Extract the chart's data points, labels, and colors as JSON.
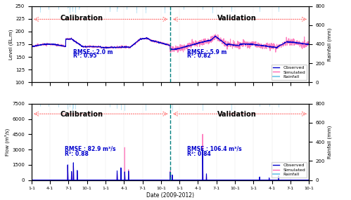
{
  "top_panel": {
    "ylabel": "Level (EL.m)",
    "ylabel2": "Rainfall (mm)",
    "ylim": [
      100,
      250
    ],
    "ylim2": [
      0,
      800
    ],
    "yticks": [
      100,
      125,
      150,
      175,
      200,
      225,
      250
    ],
    "yticks2": [
      0,
      200,
      400,
      600,
      800
    ],
    "calib_rmse": "RMSE : 2.0 m",
    "calib_r2": "R²: 0.95",
    "valid_rmse": "RMSE : 5.9 m",
    "valid_r2": "R²: 0.82"
  },
  "bottom_panel": {
    "ylabel": "Flow (m³/s)",
    "ylabel2": "Rainfall (mm)",
    "ylim": [
      0,
      7500
    ],
    "ylim2": [
      0,
      800
    ],
    "yticks": [
      0,
      1500,
      3000,
      4500,
      6000,
      7500
    ],
    "yticks2": [
      0,
      200,
      400,
      600,
      800
    ],
    "calib_rmse": "RMSE : 82.9 m³/s",
    "calib_r2": "R²: 0.88",
    "valid_rmse": "RMSE : 106.4 m³/s",
    "valid_r2": "R²: 0.84"
  },
  "xlabel": "Date (2009-2012)",
  "xtick_labels": [
    "1-1",
    "4-1",
    "7-1",
    "10-1",
    "1-1",
    "4-1",
    "7-1",
    "10-1",
    "1-1",
    "4-1",
    "7-1",
    "10-1",
    "1-1",
    "4-1",
    "7-1",
    "10-1"
  ],
  "n_ticks": 16,
  "calib_label": "Calibration",
  "valid_label": "Validation",
  "colors": {
    "observed": "#0000CD",
    "simulated": "#FF69B4",
    "rainfall": "#87CEEB",
    "arrow": "#FF6666",
    "divider": "#008080",
    "rmse_text": "#0000CD"
  },
  "legend_top": [
    "Observed",
    "Simulated",
    "Rainfall"
  ],
  "legend_bottom": [
    "Observed",
    "Simulated",
    "Rainfall"
  ],
  "fig_width": 4.99,
  "fig_height": 2.85,
  "dpi": 100
}
